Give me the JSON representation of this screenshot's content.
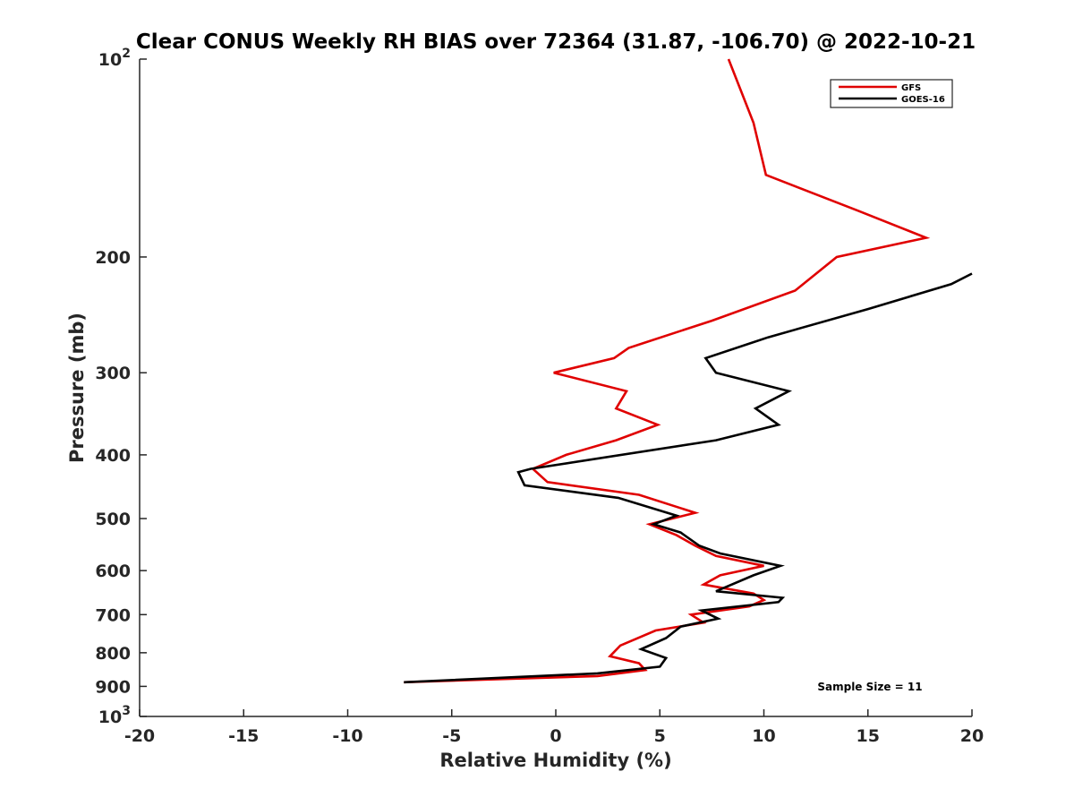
{
  "chart_data": {
    "type": "line",
    "title": "Clear CONUS Weekly RH BIAS over 72364 (31.87, -106.70) @ 2022-10-21",
    "xlabel": "Relative Humidity (%)",
    "ylabel": "Pressure (mb)",
    "xlim": [
      -20,
      20
    ],
    "ylim": [
      100,
      1000
    ],
    "y_scale": "log",
    "y_reversed": true,
    "x_ticks": [
      "-20",
      "-15",
      "-10",
      "-5",
      "0",
      "5",
      "10",
      "15",
      "20"
    ],
    "y_ticks": [
      {
        "value": 100,
        "label": "10",
        "sup": "2"
      },
      {
        "value": 200,
        "label": "200",
        "sup": ""
      },
      {
        "value": 300,
        "label": "300",
        "sup": ""
      },
      {
        "value": 400,
        "label": "400",
        "sup": ""
      },
      {
        "value": 500,
        "label": "500",
        "sup": ""
      },
      {
        "value": 600,
        "label": "600",
        "sup": ""
      },
      {
        "value": 700,
        "label": "700",
        "sup": ""
      },
      {
        "value": 800,
        "label": "800",
        "sup": ""
      },
      {
        "value": 900,
        "label": "900",
        "sup": ""
      },
      {
        "value": 1000,
        "label": "10",
        "sup": "3"
      }
    ],
    "legend_position": "top-right",
    "grid": false,
    "annotation": "Sample Size = 11",
    "series": [
      {
        "name": "GFS",
        "color": "#e00000",
        "points": [
          {
            "x": 8.3,
            "y": 100
          },
          {
            "x": 9.5,
            "y": 125
          },
          {
            "x": 10.1,
            "y": 150
          },
          {
            "x": 14.5,
            "y": 170
          },
          {
            "x": 17.8,
            "y": 187
          },
          {
            "x": 13.5,
            "y": 200
          },
          {
            "x": 11.5,
            "y": 225
          },
          {
            "x": 7.5,
            "y": 250
          },
          {
            "x": 3.5,
            "y": 275
          },
          {
            "x": 2.8,
            "y": 285
          },
          {
            "x": -0.1,
            "y": 300
          },
          {
            "x": 3.4,
            "y": 320
          },
          {
            "x": 2.9,
            "y": 340
          },
          {
            "x": 4.9,
            "y": 360
          },
          {
            "x": 2.9,
            "y": 380
          },
          {
            "x": 0.5,
            "y": 400
          },
          {
            "x": -1.1,
            "y": 420
          },
          {
            "x": -0.4,
            "y": 440
          },
          {
            "x": 4.0,
            "y": 460
          },
          {
            "x": 6.7,
            "y": 490
          },
          {
            "x": 4.5,
            "y": 510
          },
          {
            "x": 5.8,
            "y": 530
          },
          {
            "x": 6.7,
            "y": 550
          },
          {
            "x": 7.7,
            "y": 570
          },
          {
            "x": 10.0,
            "y": 590
          },
          {
            "x": 7.9,
            "y": 610
          },
          {
            "x": 7.1,
            "y": 630
          },
          {
            "x": 9.5,
            "y": 650
          },
          {
            "x": 10.0,
            "y": 665
          },
          {
            "x": 9.3,
            "y": 680
          },
          {
            "x": 6.5,
            "y": 700
          },
          {
            "x": 7.1,
            "y": 720
          },
          {
            "x": 4.8,
            "y": 740
          },
          {
            "x": 3.1,
            "y": 780
          },
          {
            "x": 2.6,
            "y": 810
          },
          {
            "x": 4.0,
            "y": 830
          },
          {
            "x": 4.3,
            "y": 850
          },
          {
            "x": 2.0,
            "y": 868
          },
          {
            "x": -7.3,
            "y": 887
          }
        ]
      },
      {
        "name": "GOES-16",
        "color": "#000000",
        "points": [
          {
            "x": 20.0,
            "y": 212
          },
          {
            "x": 19.0,
            "y": 220
          },
          {
            "x": 15.0,
            "y": 240
          },
          {
            "x": 10.2,
            "y": 265
          },
          {
            "x": 7.2,
            "y": 285
          },
          {
            "x": 7.7,
            "y": 300
          },
          {
            "x": 11.2,
            "y": 320
          },
          {
            "x": 9.6,
            "y": 340
          },
          {
            "x": 10.7,
            "y": 360
          },
          {
            "x": 7.7,
            "y": 380
          },
          {
            "x": -1.2,
            "y": 420
          },
          {
            "x": -1.8,
            "y": 425
          },
          {
            "x": -1.5,
            "y": 445
          },
          {
            "x": 3.0,
            "y": 465
          },
          {
            "x": 5.8,
            "y": 495
          },
          {
            "x": 4.7,
            "y": 510
          },
          {
            "x": 6.0,
            "y": 525
          },
          {
            "x": 6.9,
            "y": 550
          },
          {
            "x": 7.9,
            "y": 565
          },
          {
            "x": 10.8,
            "y": 590
          },
          {
            "x": 9.5,
            "y": 610
          },
          {
            "x": 7.7,
            "y": 645
          },
          {
            "x": 10.9,
            "y": 660
          },
          {
            "x": 10.7,
            "y": 670
          },
          {
            "x": 7.0,
            "y": 690
          },
          {
            "x": 7.8,
            "y": 710
          },
          {
            "x": 6.0,
            "y": 730
          },
          {
            "x": 5.3,
            "y": 760
          },
          {
            "x": 4.1,
            "y": 790
          },
          {
            "x": 5.3,
            "y": 815
          },
          {
            "x": 5.0,
            "y": 840
          },
          {
            "x": 2.0,
            "y": 860
          },
          {
            "x": -7.3,
            "y": 887
          }
        ]
      }
    ]
  }
}
